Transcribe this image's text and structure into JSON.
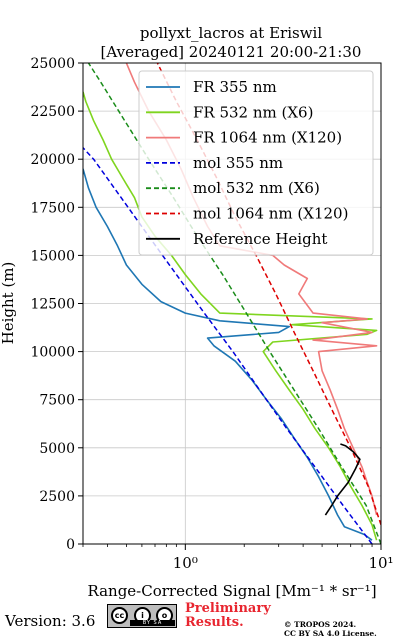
{
  "chart_data": {
    "type": "line",
    "title": "pollyxt_lacros at Eriswil",
    "subtitle": "[Averaged] 20240121 20:00-21:30",
    "xlabel": "Range-Corrected Signal [Mm⁻¹ * sr⁻¹]",
    "ylabel": "Height (m)",
    "xscale": "log",
    "xlim": [
      0.3,
      10
    ],
    "ylim": [
      0,
      25000
    ],
    "x_ticks": [
      "10⁰",
      "10¹"
    ],
    "y_ticks": [
      "0",
      "2500",
      "5000",
      "7500",
      "10000",
      "12500",
      "15000",
      "17500",
      "20000",
      "22500",
      "25000"
    ],
    "grid": true,
    "legend_position": "top-right",
    "series": [
      {
        "name": "FR 355 nm",
        "color": "#1f77b4",
        "style": "solid",
        "points": [
          [
            9.0,
            200
          ],
          [
            8.2,
            500
          ],
          [
            6.5,
            900
          ],
          [
            6.0,
            1500
          ],
          [
            5.4,
            2500
          ],
          [
            4.8,
            3500
          ],
          [
            4.2,
            4500
          ],
          [
            3.6,
            5500
          ],
          [
            3.1,
            6500
          ],
          [
            2.6,
            7500
          ],
          [
            2.2,
            8500
          ],
          [
            1.8,
            9500
          ],
          [
            1.4,
            10300
          ],
          [
            1.3,
            10700
          ],
          [
            3.0,
            11000
          ],
          [
            3.4,
            11300
          ],
          [
            1.5,
            11600
          ],
          [
            1.0,
            12000
          ],
          [
            0.75,
            12600
          ],
          [
            0.6,
            13500
          ],
          [
            0.5,
            14500
          ],
          [
            0.45,
            15500
          ],
          [
            0.4,
            16500
          ],
          [
            0.35,
            17500
          ],
          [
            0.32,
            18500
          ],
          [
            0.3,
            19500
          ]
        ]
      },
      {
        "name": "FR 532 nm (X6)",
        "color": "#7fd51f",
        "style": "solid",
        "points": [
          [
            9.5,
            200
          ],
          [
            9.0,
            1000
          ],
          [
            8.0,
            2000
          ],
          [
            7.0,
            3000
          ],
          [
            6.2,
            4000
          ],
          [
            5.4,
            5000
          ],
          [
            4.6,
            6000
          ],
          [
            4.0,
            7000
          ],
          [
            3.4,
            8000
          ],
          [
            2.9,
            9000
          ],
          [
            2.5,
            10000
          ],
          [
            2.8,
            10500
          ],
          [
            8.5,
            10900
          ],
          [
            9.5,
            11100
          ],
          [
            3.5,
            11400
          ],
          [
            9.0,
            11700
          ],
          [
            1.5,
            12000
          ],
          [
            1.2,
            13000
          ],
          [
            1.0,
            14000
          ],
          [
            0.85,
            15000
          ],
          [
            0.7,
            16000
          ],
          [
            0.6,
            17000
          ],
          [
            0.55,
            18000
          ],
          [
            0.48,
            19000
          ],
          [
            0.42,
            20000
          ],
          [
            0.38,
            21000
          ],
          [
            0.34,
            22000
          ],
          [
            0.31,
            23000
          ],
          [
            0.3,
            23500
          ]
        ]
      },
      {
        "name": "FR 1064 nm (X120)",
        "color": "#f07a7a",
        "style": "solid",
        "points": [
          [
            9.5,
            1500
          ],
          [
            9.0,
            2500
          ],
          [
            8.5,
            3200
          ],
          [
            8.0,
            4000
          ],
          [
            7.2,
            5000
          ],
          [
            6.5,
            6000
          ],
          [
            6.0,
            7000
          ],
          [
            5.5,
            8000
          ],
          [
            5.0,
            9000
          ],
          [
            4.8,
            10000
          ],
          [
            9.5,
            10300
          ],
          [
            4.5,
            10600
          ],
          [
            9.0,
            11000
          ],
          [
            5.0,
            11500
          ],
          [
            8.5,
            11700
          ],
          [
            4.5,
            12000
          ],
          [
            3.8,
            13000
          ],
          [
            4.2,
            13800
          ],
          [
            3.2,
            14500
          ],
          [
            2.8,
            15000
          ],
          [
            1.5,
            15500
          ],
          [
            1.3,
            16500
          ],
          [
            1.1,
            18000
          ],
          [
            0.95,
            19500
          ],
          [
            0.8,
            21000
          ],
          [
            0.65,
            22500
          ],
          [
            0.55,
            24000
          ],
          [
            0.5,
            25000
          ]
        ]
      },
      {
        "name": "mol 355 nm",
        "color": "#0000dd",
        "style": "dashed",
        "points": [
          [
            9.0,
            0
          ],
          [
            6.4,
            2000
          ],
          [
            4.6,
            4000
          ],
          [
            3.3,
            6000
          ],
          [
            2.4,
            8000
          ],
          [
            1.75,
            10000
          ],
          [
            1.25,
            12000
          ],
          [
            0.9,
            14000
          ],
          [
            0.65,
            16000
          ],
          [
            0.47,
            18000
          ],
          [
            0.34,
            20000
          ],
          [
            0.3,
            20600
          ]
        ]
      },
      {
        "name": "mol 532 nm (X6)",
        "color": "#1a8c1a",
        "style": "dashed",
        "points": [
          [
            10.0,
            0
          ],
          [
            8.4,
            2000
          ],
          [
            6.3,
            4000
          ],
          [
            4.8,
            6000
          ],
          [
            3.6,
            8000
          ],
          [
            2.7,
            10000
          ],
          [
            2.05,
            12000
          ],
          [
            1.55,
            14000
          ],
          [
            1.15,
            16000
          ],
          [
            0.87,
            18000
          ],
          [
            0.65,
            20000
          ],
          [
            0.49,
            22000
          ],
          [
            0.37,
            24000
          ],
          [
            0.32,
            25000
          ]
        ]
      },
      {
        "name": "mol 1064 nm (X120)",
        "color": "#dd0000",
        "style": "dashed",
        "points": [
          [
            10.0,
            1000
          ],
          [
            8.6,
            3000
          ],
          [
            7.0,
            5000
          ],
          [
            5.6,
            7000
          ],
          [
            4.5,
            9000
          ],
          [
            3.6,
            11000
          ],
          [
            2.9,
            13000
          ],
          [
            2.3,
            15000
          ],
          [
            1.8,
            17000
          ],
          [
            1.45,
            19000
          ],
          [
            1.15,
            21000
          ],
          [
            0.9,
            23000
          ],
          [
            0.72,
            25000
          ]
        ]
      },
      {
        "name": "Reference Height",
        "color": "#000000",
        "style": "solid",
        "points": [
          [
            5.2,
            1500
          ],
          [
            5.6,
            2000
          ],
          [
            6.0,
            2500
          ],
          [
            6.8,
            3200
          ],
          [
            7.4,
            3900
          ],
          [
            7.8,
            4400
          ],
          [
            7.2,
            4800
          ],
          [
            6.6,
            5100
          ],
          [
            6.2,
            5200
          ]
        ]
      }
    ]
  },
  "footer": {
    "version": "Version: 3.6",
    "cc_icons": [
      "cc",
      "i",
      "o"
    ],
    "cc_strip": "BY SA",
    "preliminary_line1": "Preliminary",
    "preliminary_line2": "Results.",
    "copyright_line1": "© TROPOS 2024.",
    "copyright_line2": "CC BY SA 4.0 License."
  }
}
